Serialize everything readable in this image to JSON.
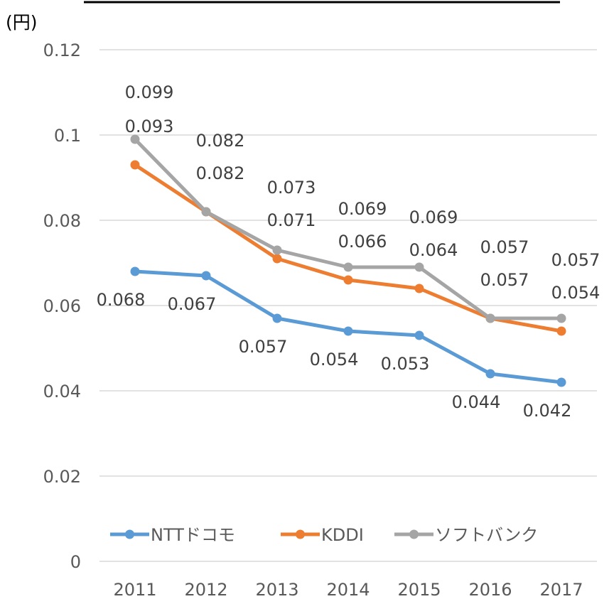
{
  "chart_data": {
    "type": "line",
    "title": "",
    "unit_label": "(円)",
    "xlabel": "",
    "ylabel": "",
    "categories": [
      "2011",
      "2012",
      "2013",
      "2014",
      "2015",
      "2016",
      "2017"
    ],
    "y_ticks": [
      "0",
      "0.02",
      "0.04",
      "0.06",
      "0.08",
      "0.1",
      "0.12"
    ],
    "ylim": [
      0,
      0.12
    ],
    "grid": true,
    "legend_position": "bottom-inside",
    "series": [
      {
        "name": "NTTドコモ",
        "color": "#5b9bd5",
        "values": [
          0.068,
          0.067,
          0.057,
          0.054,
          0.053,
          0.044,
          0.042
        ],
        "labels": [
          "0.068",
          "0.067",
          "0.057",
          "0.054",
          "0.053",
          "0.044",
          "0.042"
        ]
      },
      {
        "name": "KDDI",
        "color": "#ed7d31",
        "values": [
          0.093,
          0.082,
          0.071,
          0.066,
          0.064,
          0.057,
          0.054
        ],
        "labels": [
          "0.093",
          "0.082",
          "0.071",
          "0.066",
          "0.064",
          "0.057",
          "0.054"
        ]
      },
      {
        "name": "ソフトバンク",
        "color": "#a5a5a5",
        "values": [
          0.099,
          0.082,
          0.073,
          0.069,
          0.069,
          0.057,
          0.057
        ],
        "labels": [
          "0.099",
          "0.082",
          "0.073",
          "0.069",
          "0.069",
          "0.057",
          "0.057"
        ]
      }
    ]
  }
}
